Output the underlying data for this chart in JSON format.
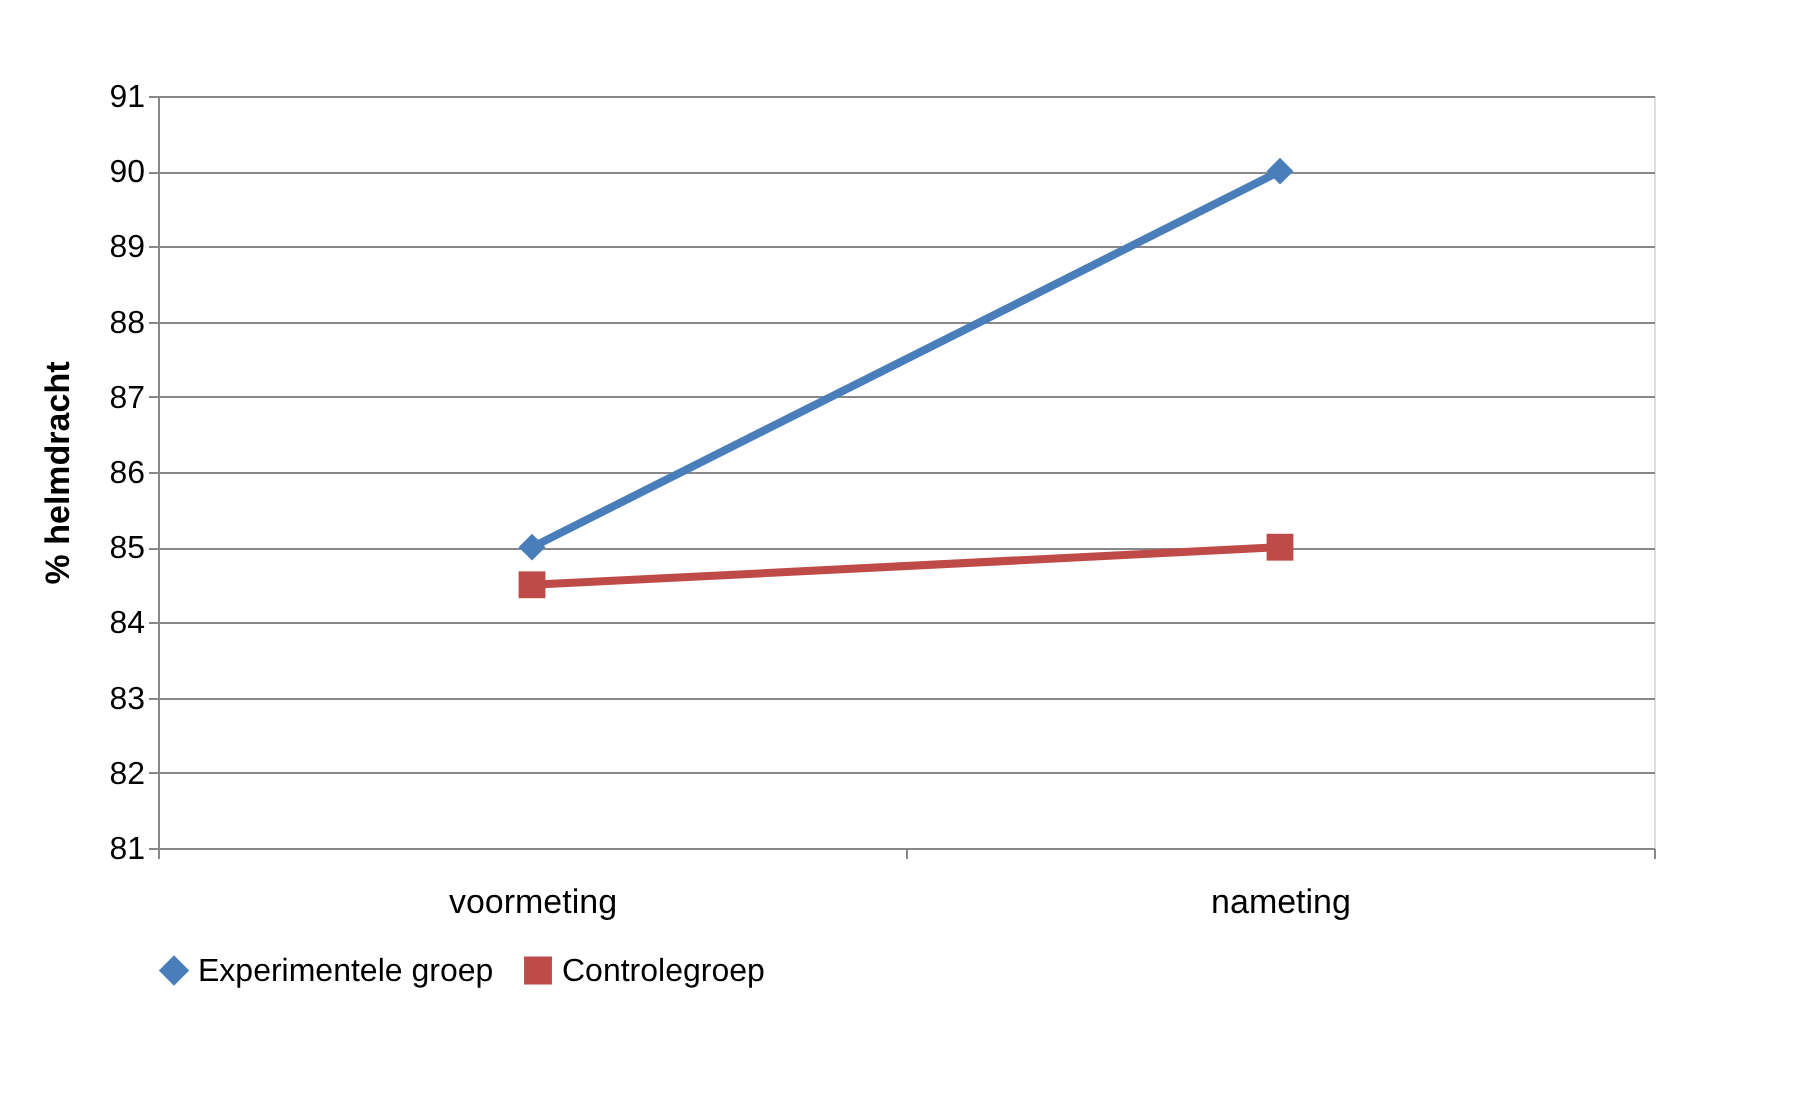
{
  "chart_data": {
    "type": "line",
    "ylabel": "% helmdracht",
    "categories": [
      "voormeting",
      "nameting"
    ],
    "series": [
      {
        "name": "Experimentele groep",
        "color": "#4a7ebb",
        "values": [
          85,
          90
        ],
        "marker": "diamond"
      },
      {
        "name": "Controlegroep",
        "color": "#be4b48",
        "values": [
          84.5,
          85
        ],
        "marker": "square"
      }
    ],
    "ylim": [
      81,
      91
    ],
    "yticks": [
      81,
      82,
      83,
      84,
      85,
      86,
      87,
      88,
      89,
      90,
      91
    ],
    "grid": "y",
    "legend": "bottom"
  }
}
